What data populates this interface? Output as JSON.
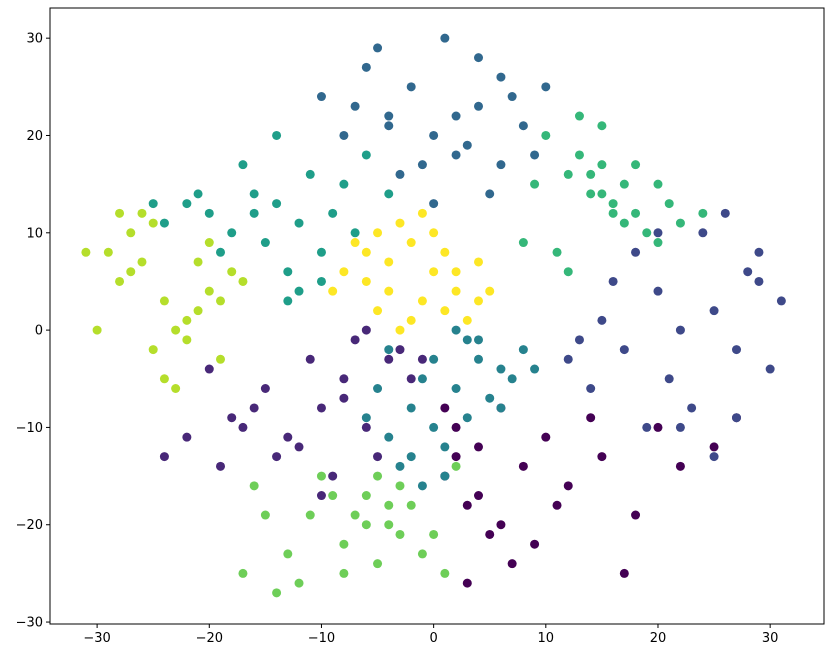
{
  "chart_data": {
    "type": "scatter",
    "xlim": [
      -34.2,
      34.8
    ],
    "ylim": [
      -30.2,
      33.1
    ],
    "xticks": [
      {
        "value": -30,
        "label": "−30"
      },
      {
        "value": -20,
        "label": "−20"
      },
      {
        "value": -10,
        "label": "−10"
      },
      0,
      10,
      20,
      30
    ],
    "yticks": [
      {
        "value": -30,
        "label": "−30"
      },
      {
        "value": -20,
        "label": "−20"
      },
      {
        "value": -10,
        "label": "−10"
      },
      0,
      10,
      20,
      30
    ],
    "grid": false,
    "series": [
      {
        "color": "#440154",
        "x": [
          2,
          4,
          6,
          1,
          3,
          8,
          10,
          12,
          5,
          7,
          15,
          18,
          20,
          22,
          25,
          3,
          6,
          9,
          1,
          14,
          17,
          27,
          4,
          11,
          2
        ],
        "y": [
          -10,
          -12,
          -8,
          -15,
          -18,
          -14,
          -11,
          -16,
          -21,
          -24,
          -13,
          -19,
          -10,
          -14,
          -12,
          -26,
          -20,
          -22,
          -8,
          -9,
          -25,
          -9,
          -17,
          -18,
          -13
        ]
      },
      {
        "color": "#482878",
        "x": [
          -8,
          -10,
          -6,
          -4,
          -12,
          -15,
          -18,
          -20,
          -22,
          -14,
          -9,
          -7,
          -3,
          -5,
          -11,
          -16,
          -13,
          -2,
          -19,
          -24,
          -6,
          -10,
          -8,
          -17,
          -1
        ],
        "y": [
          -5,
          -8,
          -10,
          -3,
          -12,
          -6,
          -9,
          -4,
          -11,
          -13,
          -15,
          -1,
          -2,
          -13,
          -3,
          -8,
          -11,
          -5,
          -14,
          -13,
          0,
          -17,
          -7,
          -10,
          -3
        ]
      },
      {
        "color": "#3e4989",
        "x": [
          18,
          20,
          22,
          25,
          27,
          29,
          24,
          21,
          17,
          15,
          12,
          26,
          28,
          30,
          23,
          19,
          25,
          14,
          31,
          20,
          22,
          27,
          16,
          13,
          29
        ],
        "y": [
          8,
          4,
          0,
          2,
          -2,
          5,
          10,
          -5,
          -2,
          1,
          -3,
          12,
          6,
          -4,
          -8,
          -10,
          -13,
          -6,
          3,
          10,
          -10,
          -9,
          5,
          -1,
          8
        ]
      },
      {
        "color": "#31688e",
        "x": [
          -6,
          -4,
          -2,
          0,
          2,
          4,
          6,
          8,
          -8,
          -5,
          -1,
          3,
          5,
          7,
          10,
          -3,
          1,
          -7,
          9,
          -10,
          0,
          4,
          -4,
          6,
          2
        ],
        "y": [
          27,
          22,
          25,
          20,
          18,
          23,
          26,
          21,
          20,
          29,
          17,
          19,
          14,
          24,
          25,
          16,
          30,
          23,
          18,
          24,
          13,
          28,
          21,
          17,
          22
        ]
      },
      {
        "color": "#26828e",
        "x": [
          0,
          2,
          4,
          -2,
          -4,
          6,
          8,
          1,
          -3,
          3,
          5,
          -1,
          7,
          -5,
          2,
          0,
          4,
          -2,
          9,
          -6,
          1,
          3,
          -4,
          6,
          -1
        ],
        "y": [
          -3,
          -6,
          -1,
          -8,
          -11,
          -4,
          -2,
          -12,
          -14,
          -9,
          -7,
          -16,
          -5,
          -6,
          0,
          -10,
          -3,
          -13,
          -4,
          -9,
          -15,
          -1,
          -2,
          -8,
          -5
        ]
      },
      {
        "color": "#1f9e89",
        "x": [
          -20,
          -18,
          -16,
          -14,
          -12,
          -10,
          -8,
          -22,
          -24,
          -15,
          -13,
          -11,
          -17,
          -19,
          -9,
          -6,
          -4,
          -12,
          -21,
          -14,
          -7,
          -25,
          -16,
          -10,
          -13
        ],
        "y": [
          12,
          10,
          14,
          13,
          11,
          8,
          15,
          13,
          11,
          9,
          6,
          16,
          17,
          8,
          12,
          18,
          14,
          4,
          14,
          20,
          10,
          13,
          12,
          5,
          3
        ]
      },
      {
        "color": "#35b779",
        "x": [
          12,
          14,
          15,
          16,
          18,
          20,
          13,
          10,
          17,
          19,
          22,
          11,
          15,
          9,
          14,
          16,
          21,
          24,
          8,
          13,
          18,
          20,
          12,
          17,
          15
        ],
        "y": [
          16,
          14,
          17,
          13,
          12,
          15,
          18,
          20,
          11,
          10,
          11,
          8,
          21,
          15,
          16,
          12,
          13,
          12,
          9,
          22,
          17,
          9,
          6,
          15,
          14
        ]
      },
      {
        "color": "#6ece58",
        "x": [
          -2,
          -4,
          -6,
          -8,
          0,
          -3,
          -5,
          -7,
          1,
          -1,
          -9,
          -10,
          -12,
          -14,
          -16,
          -13,
          -11,
          -3,
          2,
          -5,
          -8,
          -6,
          -17,
          -15,
          -4
        ],
        "y": [
          -18,
          -20,
          -17,
          -22,
          -21,
          -16,
          -24,
          -19,
          -25,
          -23,
          -17,
          -15,
          -26,
          -27,
          -16,
          -23,
          -19,
          -21,
          -14,
          -15,
          -25,
          -20,
          -25,
          -19,
          -18
        ]
      },
      {
        "color": "#b5de2b",
        "x": [
          -28,
          -26,
          -24,
          -22,
          -20,
          -18,
          -27,
          -25,
          -23,
          -21,
          -19,
          -17,
          -29,
          -31,
          -30,
          -26,
          -24,
          -22,
          -20,
          -25,
          -23,
          -21,
          -19,
          -27,
          -28
        ],
        "y": [
          5,
          7,
          3,
          1,
          4,
          6,
          10,
          -2,
          0,
          2,
          -3,
          5,
          8,
          8,
          0,
          12,
          -5,
          -1,
          9,
          11,
          -6,
          7,
          3,
          6,
          12
        ]
      },
      {
        "color": "#fde725",
        "x": [
          -6,
          -4,
          -2,
          0,
          2,
          4,
          -8,
          -5,
          -3,
          -1,
          1,
          3,
          5,
          -7,
          -4,
          -1,
          0,
          -2,
          4,
          -6,
          -3,
          2,
          -5,
          1,
          -9
        ],
        "y": [
          5,
          7,
          9,
          6,
          4,
          3,
          6,
          2,
          11,
          12,
          8,
          1,
          4,
          9,
          4,
          3,
          10,
          1,
          7,
          8,
          0,
          6,
          10,
          2,
          4
        ]
      }
    ]
  }
}
